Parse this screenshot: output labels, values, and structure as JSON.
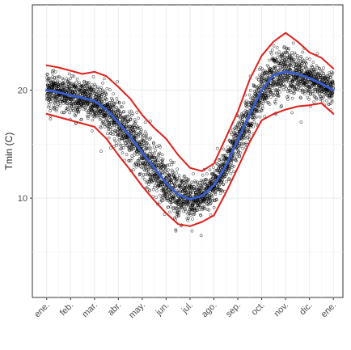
{
  "chart_data": {
    "type": "scatter",
    "title": "",
    "xlabel": "",
    "ylabel": "Tmin (C)",
    "x_ticks": [
      "ene.",
      "feb.",
      "mar.",
      "abr.",
      "may.",
      "jun.",
      "jul.",
      "ago.",
      "sep.",
      "oct.",
      "nov.",
      "dic.",
      "ene."
    ],
    "y_ticks": [
      10,
      20
    ],
    "xlim": [
      -0.6,
      12.4
    ],
    "ylim": [
      0.8,
      27.9
    ],
    "grid": true,
    "legend": "none",
    "point_count": 3650,
    "series": [
      {
        "type": "line",
        "color": "#3a5fcd",
        "x": [
          0,
          0.5,
          1,
          1.5,
          2,
          2.5,
          3,
          3.5,
          4,
          4.5,
          5,
          5.5,
          6,
          6.5,
          7,
          7.5,
          8,
          8.5,
          9,
          9.5,
          10,
          10.5,
          11,
          11.5,
          12
        ],
        "values": [
          20.0,
          19.8,
          19.5,
          19.3,
          19.0,
          18.2,
          17.0,
          15.7,
          14.2,
          12.8,
          11.4,
          10.3,
          9.9,
          10.2,
          11.2,
          13.0,
          15.4,
          17.8,
          20.0,
          21.4,
          21.7,
          21.5,
          21.1,
          20.6,
          20.0
        ]
      },
      {
        "type": "line",
        "color": "#e0201b",
        "x": [
          0,
          0.5,
          1,
          1.5,
          2,
          2.5,
          3,
          3.5,
          4,
          4.5,
          5,
          5.5,
          6,
          6.5,
          7,
          7.5,
          8,
          8.5,
          9,
          9.5,
          10,
          10.5,
          11,
          11.5,
          12
        ],
        "values": [
          22.3,
          22.1,
          21.8,
          21.5,
          21.7,
          21.3,
          20.3,
          19.2,
          17.7,
          16.5,
          15.5,
          14.0,
          12.8,
          12.5,
          13.2,
          15.6,
          18.0,
          21.0,
          23.2,
          24.5,
          25.3,
          24.5,
          23.5,
          23.0,
          22.0
        ]
      },
      {
        "type": "line",
        "color": "#e0201b",
        "x": [
          0,
          0.5,
          1,
          1.5,
          2,
          2.5,
          3,
          3.5,
          4,
          4.5,
          5,
          5.5,
          6,
          6.5,
          7,
          7.5,
          8,
          8.5,
          9,
          9.5,
          10,
          10.5,
          11,
          11.5,
          12
        ],
        "values": [
          17.8,
          17.5,
          17.2,
          16.9,
          16.6,
          15.5,
          14.0,
          12.6,
          11.1,
          9.8,
          8.6,
          7.6,
          7.4,
          7.8,
          8.4,
          10.5,
          12.8,
          15.2,
          17.2,
          17.8,
          18.2,
          18.5,
          18.6,
          18.8,
          17.8
        ]
      }
    ]
  }
}
